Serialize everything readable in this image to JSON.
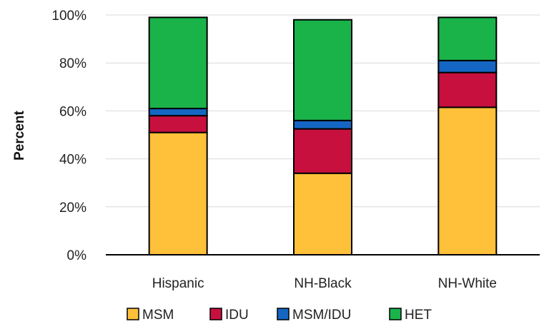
{
  "chart_data": {
    "type": "bar",
    "stacked": true,
    "title": "",
    "xlabel": "",
    "ylabel": "Percent",
    "categories": [
      "Hispanic",
      "NH-Black",
      "NH-White"
    ],
    "series": [
      {
        "name": "MSM",
        "color": "#FFC03A",
        "values": [
          51,
          34,
          61.5
        ]
      },
      {
        "name": "IDU",
        "color": "#C8103E",
        "values": [
          7,
          18.5,
          14.5
        ]
      },
      {
        "name": "MSM/IDU",
        "color": "#1466C2",
        "values": [
          3,
          3.5,
          5
        ]
      },
      {
        "name": "HET",
        "color": "#1AB34A",
        "values": [
          38,
          42,
          18
        ]
      }
    ],
    "ylim": [
      0,
      100
    ],
    "yticks": [
      "0%",
      "20%",
      "40%",
      "60%",
      "80%",
      "100%"
    ],
    "ytick_values": [
      0,
      20,
      40,
      60,
      80,
      100
    ],
    "grid": true,
    "legend_position": "bottom"
  }
}
